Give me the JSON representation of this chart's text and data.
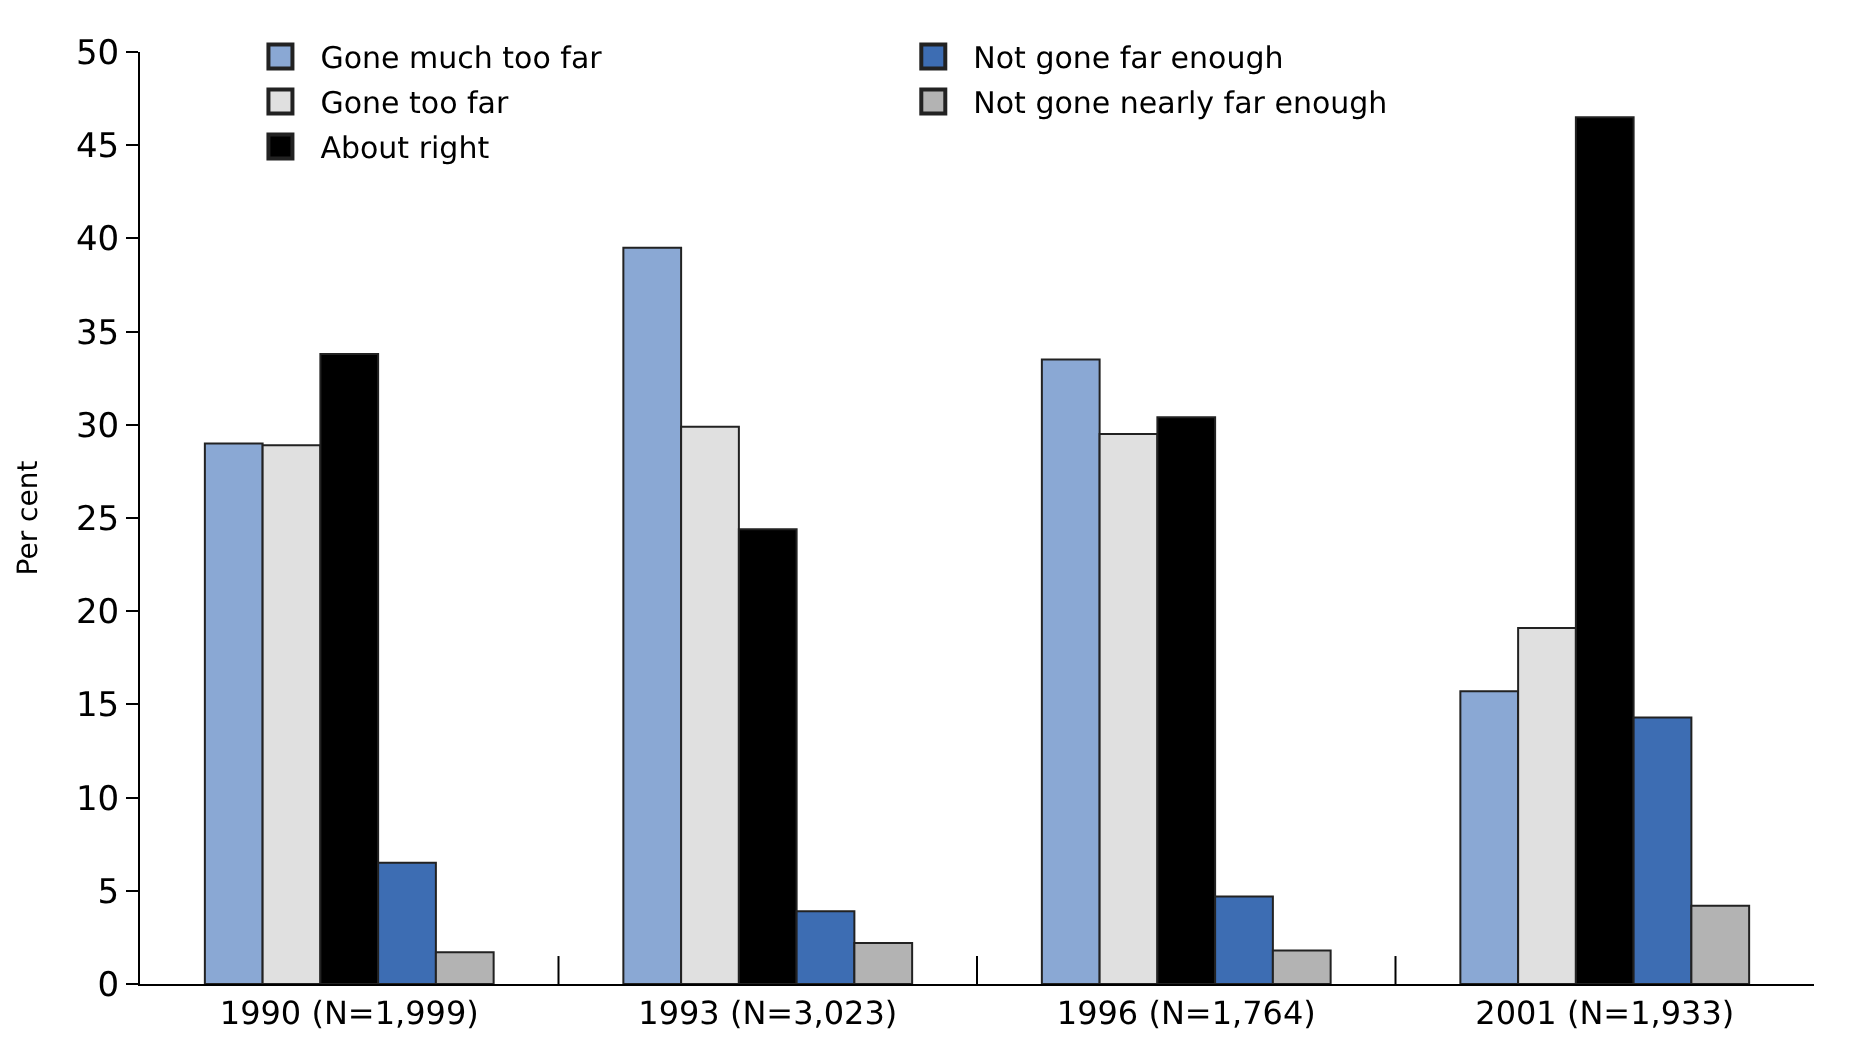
{
  "chart_data": {
    "type": "bar",
    "ylabel": "Per cent",
    "categories": [
      "1990 (N=1,999)",
      "1993 (N=3,023)",
      "1996 (N=1,764)",
      "2001 (N=1,933)"
    ],
    "series": [
      {
        "name": "Gone much too far",
        "color": "#8aa8d4",
        "values": [
          29.0,
          39.5,
          33.5,
          15.7
        ]
      },
      {
        "name": "Gone too far",
        "color": "#e0e0e0",
        "values": [
          28.9,
          29.9,
          29.5,
          19.1
        ]
      },
      {
        "name": "About right",
        "color": "#000000",
        "values": [
          33.8,
          24.4,
          30.4,
          46.5
        ]
      },
      {
        "name": "Not gone far enough",
        "color": "#3d6db3",
        "values": [
          6.5,
          3.9,
          4.7,
          14.3
        ]
      },
      {
        "name": "Not gone nearly far enough",
        "color": "#b3b3b3",
        "values": [
          1.7,
          2.2,
          1.8,
          4.2
        ]
      }
    ],
    "ylim": [
      0,
      50
    ],
    "yticks": [
      0,
      5,
      10,
      15,
      20,
      25,
      30,
      35,
      40,
      45,
      50
    ],
    "legend": "top left"
  }
}
